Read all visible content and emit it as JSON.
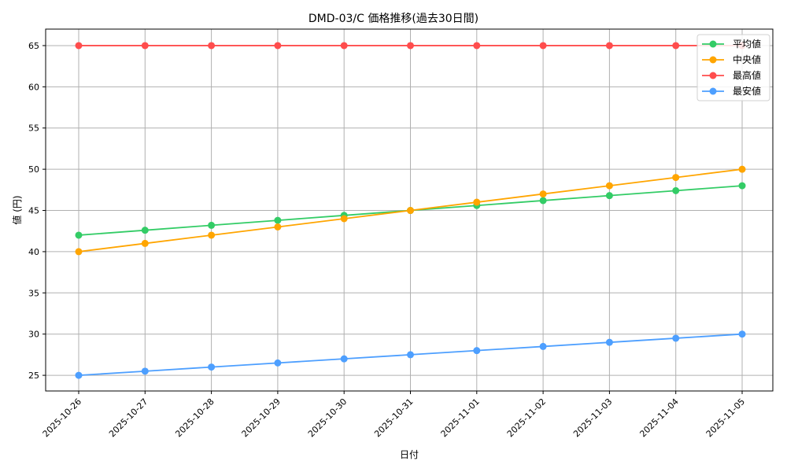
{
  "chart_data": {
    "type": "line",
    "title": "DMD-03/C 価格推移(過去30日間)",
    "xlabel": "日付",
    "ylabel": "値 (円)",
    "x": [
      "2025-10-26",
      "2025-10-27",
      "2025-10-28",
      "2025-10-29",
      "2025-10-30",
      "2025-10-31",
      "2025-11-01",
      "2025-11-02",
      "2025-11-03",
      "2025-11-04",
      "2025-11-05"
    ],
    "series": [
      {
        "name": "平均値",
        "color": "#33cc66",
        "values": [
          42,
          42.6,
          43.2,
          43.8,
          44.4,
          45,
          45.6,
          46.2,
          46.8,
          47.4,
          48
        ]
      },
      {
        "name": "中央値",
        "color": "#ffa500",
        "values": [
          40,
          41,
          42,
          43,
          44,
          45,
          46,
          47,
          48,
          49,
          50
        ]
      },
      {
        "name": "最高値",
        "color": "#ff4d4d",
        "values": [
          65,
          65,
          65,
          65,
          65,
          65,
          65,
          65,
          65,
          65,
          65
        ]
      },
      {
        "name": "最安値",
        "color": "#4d9fff",
        "values": [
          25,
          25.5,
          26,
          26.5,
          27,
          27.5,
          28,
          28.5,
          29,
          29.5,
          30
        ]
      }
    ],
    "yticks": [
      25,
      30,
      35,
      40,
      45,
      50,
      55,
      60,
      65
    ],
    "ylim": [
      23.1,
      67.0
    ],
    "grid": true,
    "legend_position": "upper right"
  }
}
